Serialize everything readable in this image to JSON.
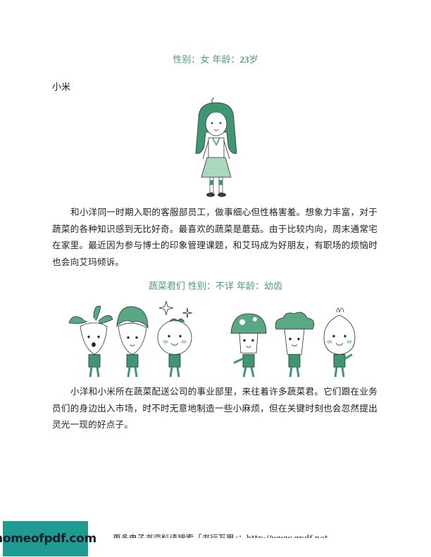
{
  "heading1": {
    "prefix": "性别：女 年龄：",
    "number": "23",
    "suffix": "岁"
  },
  "character_name": "小米",
  "paragraph1": "和小洋同一时期入职的客服部员工，做事细心但性格害羞。想象力丰富，对于蔬菜的各种知识感到无比好奇。最喜欢的蔬菜是蘑菇。由于比较内向，周末通常宅在家里。最近因为参与博士的印象管理课题，和艾玛成为好朋友，有职场的烦恼时也会向艾玛倾诉。",
  "heading2": "蔬菜君们 性别：不详 年龄：幼齿",
  "paragraph2": "小洋和小米所在蔬菜配送公司的事业部里，来往着许多蔬菜君。它们跟在业务员们的身边出入市场，时不时无意地制造一些小麻烦，但在关键时刻也会忽然提出灵光一现的好点子。",
  "footer": {
    "text": "更多电子书资料请搜索「书行万里」：http://www.gpdf.net"
  },
  "logo": {
    "text": "homeofpdf.com"
  },
  "colors": {
    "accent_green": "#4f9a78",
    "logo_bg": "#1f9c92"
  }
}
